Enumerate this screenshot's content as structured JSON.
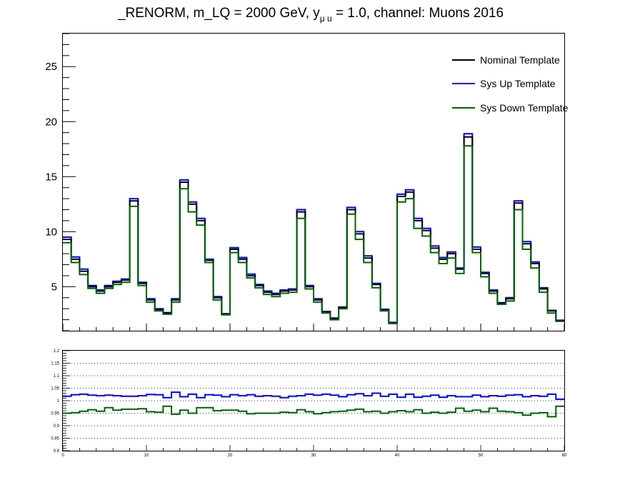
{
  "chart_data": [
    {
      "type": "line",
      "title": "_RENORM, m_LQ = 2000 GeV, y",
      "title_subscript": "μ u",
      "title_suffix": " = 1.0, channel: Muons 2016",
      "step": true,
      "xlim": [
        0,
        60
      ],
      "ylim": [
        1,
        28
      ],
      "yticks": [
        5,
        10,
        15,
        20,
        25
      ],
      "grid": false,
      "legend_position": "top-right",
      "series": [
        {
          "name": "Nominal Template",
          "color": "#000000",
          "values": [
            9.3,
            7.5,
            6.4,
            5.0,
            4.6,
            5.0,
            5.4,
            5.6,
            12.8,
            5.3,
            3.8,
            2.9,
            2.6,
            3.8,
            14.5,
            12.5,
            11.0,
            7.4,
            4.0,
            2.5,
            8.4,
            7.5,
            6.0,
            5.1,
            4.5,
            4.3,
            4.6,
            4.7,
            11.8,
            5.0,
            3.8,
            2.7,
            2.1,
            3.1,
            12.0,
            9.8,
            7.6,
            5.2,
            2.9,
            1.7,
            13.2,
            13.6,
            11.0,
            10.1,
            8.5,
            7.5,
            8.0,
            6.6,
            18.6,
            8.4,
            6.2,
            4.6,
            3.5,
            3.9,
            12.6,
            8.9,
            7.1,
            4.8,
            2.8,
            1.9
          ]
        },
        {
          "name": "Sys Up Template",
          "color": "#0000ff",
          "values": [
            9.5,
            7.7,
            6.6,
            5.1,
            4.7,
            5.1,
            5.5,
            5.7,
            13.0,
            5.4,
            3.9,
            3.0,
            2.65,
            3.9,
            14.7,
            12.7,
            11.2,
            7.5,
            4.1,
            2.55,
            8.55,
            7.65,
            6.15,
            5.2,
            4.6,
            4.4,
            4.7,
            4.8,
            12.0,
            5.1,
            3.9,
            2.75,
            2.15,
            3.15,
            12.2,
            10.0,
            7.8,
            5.3,
            2.95,
            1.75,
            13.4,
            13.8,
            11.2,
            10.3,
            8.7,
            7.65,
            8.15,
            6.7,
            18.9,
            8.6,
            6.3,
            4.7,
            3.55,
            4.0,
            12.8,
            9.1,
            7.25,
            4.9,
            2.85,
            1.95
          ]
        },
        {
          "name": "Sys Down Template",
          "color": "#006400",
          "values": [
            9.0,
            7.2,
            6.1,
            4.85,
            4.4,
            4.85,
            5.2,
            5.4,
            12.3,
            5.1,
            3.6,
            2.8,
            2.5,
            3.6,
            13.9,
            11.8,
            10.6,
            7.2,
            3.8,
            2.45,
            8.1,
            7.2,
            5.8,
            4.9,
            4.3,
            4.1,
            4.4,
            4.5,
            11.2,
            4.8,
            3.6,
            2.6,
            2.0,
            3.0,
            11.6,
            9.3,
            7.2,
            4.9,
            2.8,
            1.65,
            12.7,
            13.0,
            10.3,
            9.6,
            8.1,
            7.1,
            7.6,
            6.2,
            17.8,
            8.1,
            5.9,
            4.4,
            3.4,
            3.7,
            12.0,
            8.4,
            6.7,
            4.5,
            2.6,
            1.85
          ]
        }
      ]
    },
    {
      "type": "line",
      "step": true,
      "xlim": [
        0,
        60
      ],
      "ylim": [
        0.8,
        1.2
      ],
      "xticks": [
        0,
        10,
        20,
        30,
        40,
        50,
        60
      ],
      "yticks": [
        0.8,
        0.85,
        0.9,
        0.95,
        1,
        1.05,
        1.1,
        1.15,
        1.2
      ],
      "ytick_labels": [
        "0.8",
        "0.85",
        "0.9",
        "0.95",
        "1",
        "1.05",
        "1.1",
        "1.15",
        "1.2"
      ],
      "grid": "horizontal-dotted",
      "series": [
        {
          "color": "#0000ff",
          "values": [
            1.018,
            1.024,
            1.026,
            1.022,
            1.02,
            1.022,
            1.02,
            1.018,
            1.018,
            1.02,
            1.025,
            1.024,
            1.012,
            1.034,
            1.016,
            1.026,
            1.012,
            1.024,
            1.022,
            1.016,
            1.024,
            1.02,
            1.024,
            1.018,
            1.02,
            1.018,
            1.012,
            1.018,
            1.02,
            1.026,
            1.022,
            1.026,
            1.022,
            1.016,
            1.024,
            1.028,
            1.02,
            1.03,
            1.018,
            1.026,
            1.014,
            1.026,
            1.014,
            1.018,
            1.022,
            1.014,
            1.02,
            1.016,
            1.016,
            1.022,
            1.016,
            1.02,
            1.018,
            1.022,
            1.024,
            1.016,
            1.02,
            1.018,
            1.026,
            1.006
          ]
        },
        {
          "color": "#006400",
          "values": [
            0.95,
            0.952,
            0.958,
            0.964,
            0.958,
            0.972,
            0.962,
            0.966,
            0.966,
            0.968,
            0.956,
            0.954,
            0.978,
            0.946,
            0.962,
            0.95,
            0.972,
            0.972,
            0.96,
            0.962,
            0.962,
            0.958,
            0.948,
            0.95,
            0.95,
            0.95,
            0.954,
            0.952,
            0.964,
            0.956,
            0.948,
            0.952,
            0.956,
            0.958,
            0.962,
            0.966,
            0.956,
            0.958,
            0.95,
            0.956,
            0.96,
            0.956,
            0.964,
            0.95,
            0.954,
            0.95,
            0.954,
            0.97,
            0.958,
            0.962,
            0.956,
            0.97,
            0.958,
            0.956,
            0.952,
            0.942,
            0.95,
            0.952,
            0.936,
            0.978
          ]
        }
      ]
    }
  ]
}
